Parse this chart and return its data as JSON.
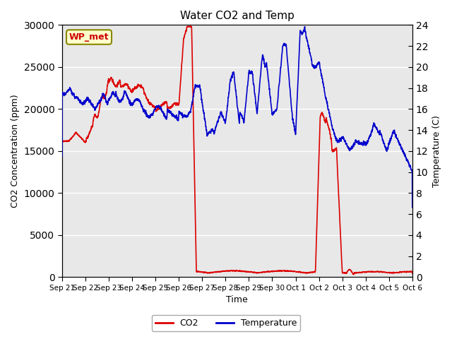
{
  "title": "Water CO2 and Temp",
  "xlabel": "Time",
  "ylabel_left": "CO2 Concentration (ppm)",
  "ylabel_right": "Temperature (C)",
  "ylim_left": [
    0,
    30000
  ],
  "ylim_right": [
    0,
    24
  ],
  "yticks_left": [
    0,
    5000,
    10000,
    15000,
    20000,
    25000,
    30000
  ],
  "yticks_right": [
    0,
    2,
    4,
    6,
    8,
    10,
    12,
    14,
    16,
    18,
    20,
    22,
    24
  ],
  "bg_color": "#e8e8e8",
  "fig_color": "#ffffff",
  "co2_color": "#dd0000",
  "temp_color": "#0000cc",
  "label_box_text": "WP_met",
  "label_box_bg": "#ffffcc",
  "label_box_edge": "#888800",
  "label_box_text_color": "#cc0000",
  "grid_color": "#ffffff",
  "xtick_labels": [
    "Sep 21",
    "Sep 22",
    "Sep 23",
    "Sep 24",
    "Sep 25",
    "Sep 26",
    "Sep 27",
    "Sep 28",
    "Sep 29",
    "Sep 30",
    "Oct 1",
    "Oct 2",
    "Oct 3",
    "Oct 4",
    "Oct 5",
    "Oct 6"
  ],
  "n_days": 15
}
